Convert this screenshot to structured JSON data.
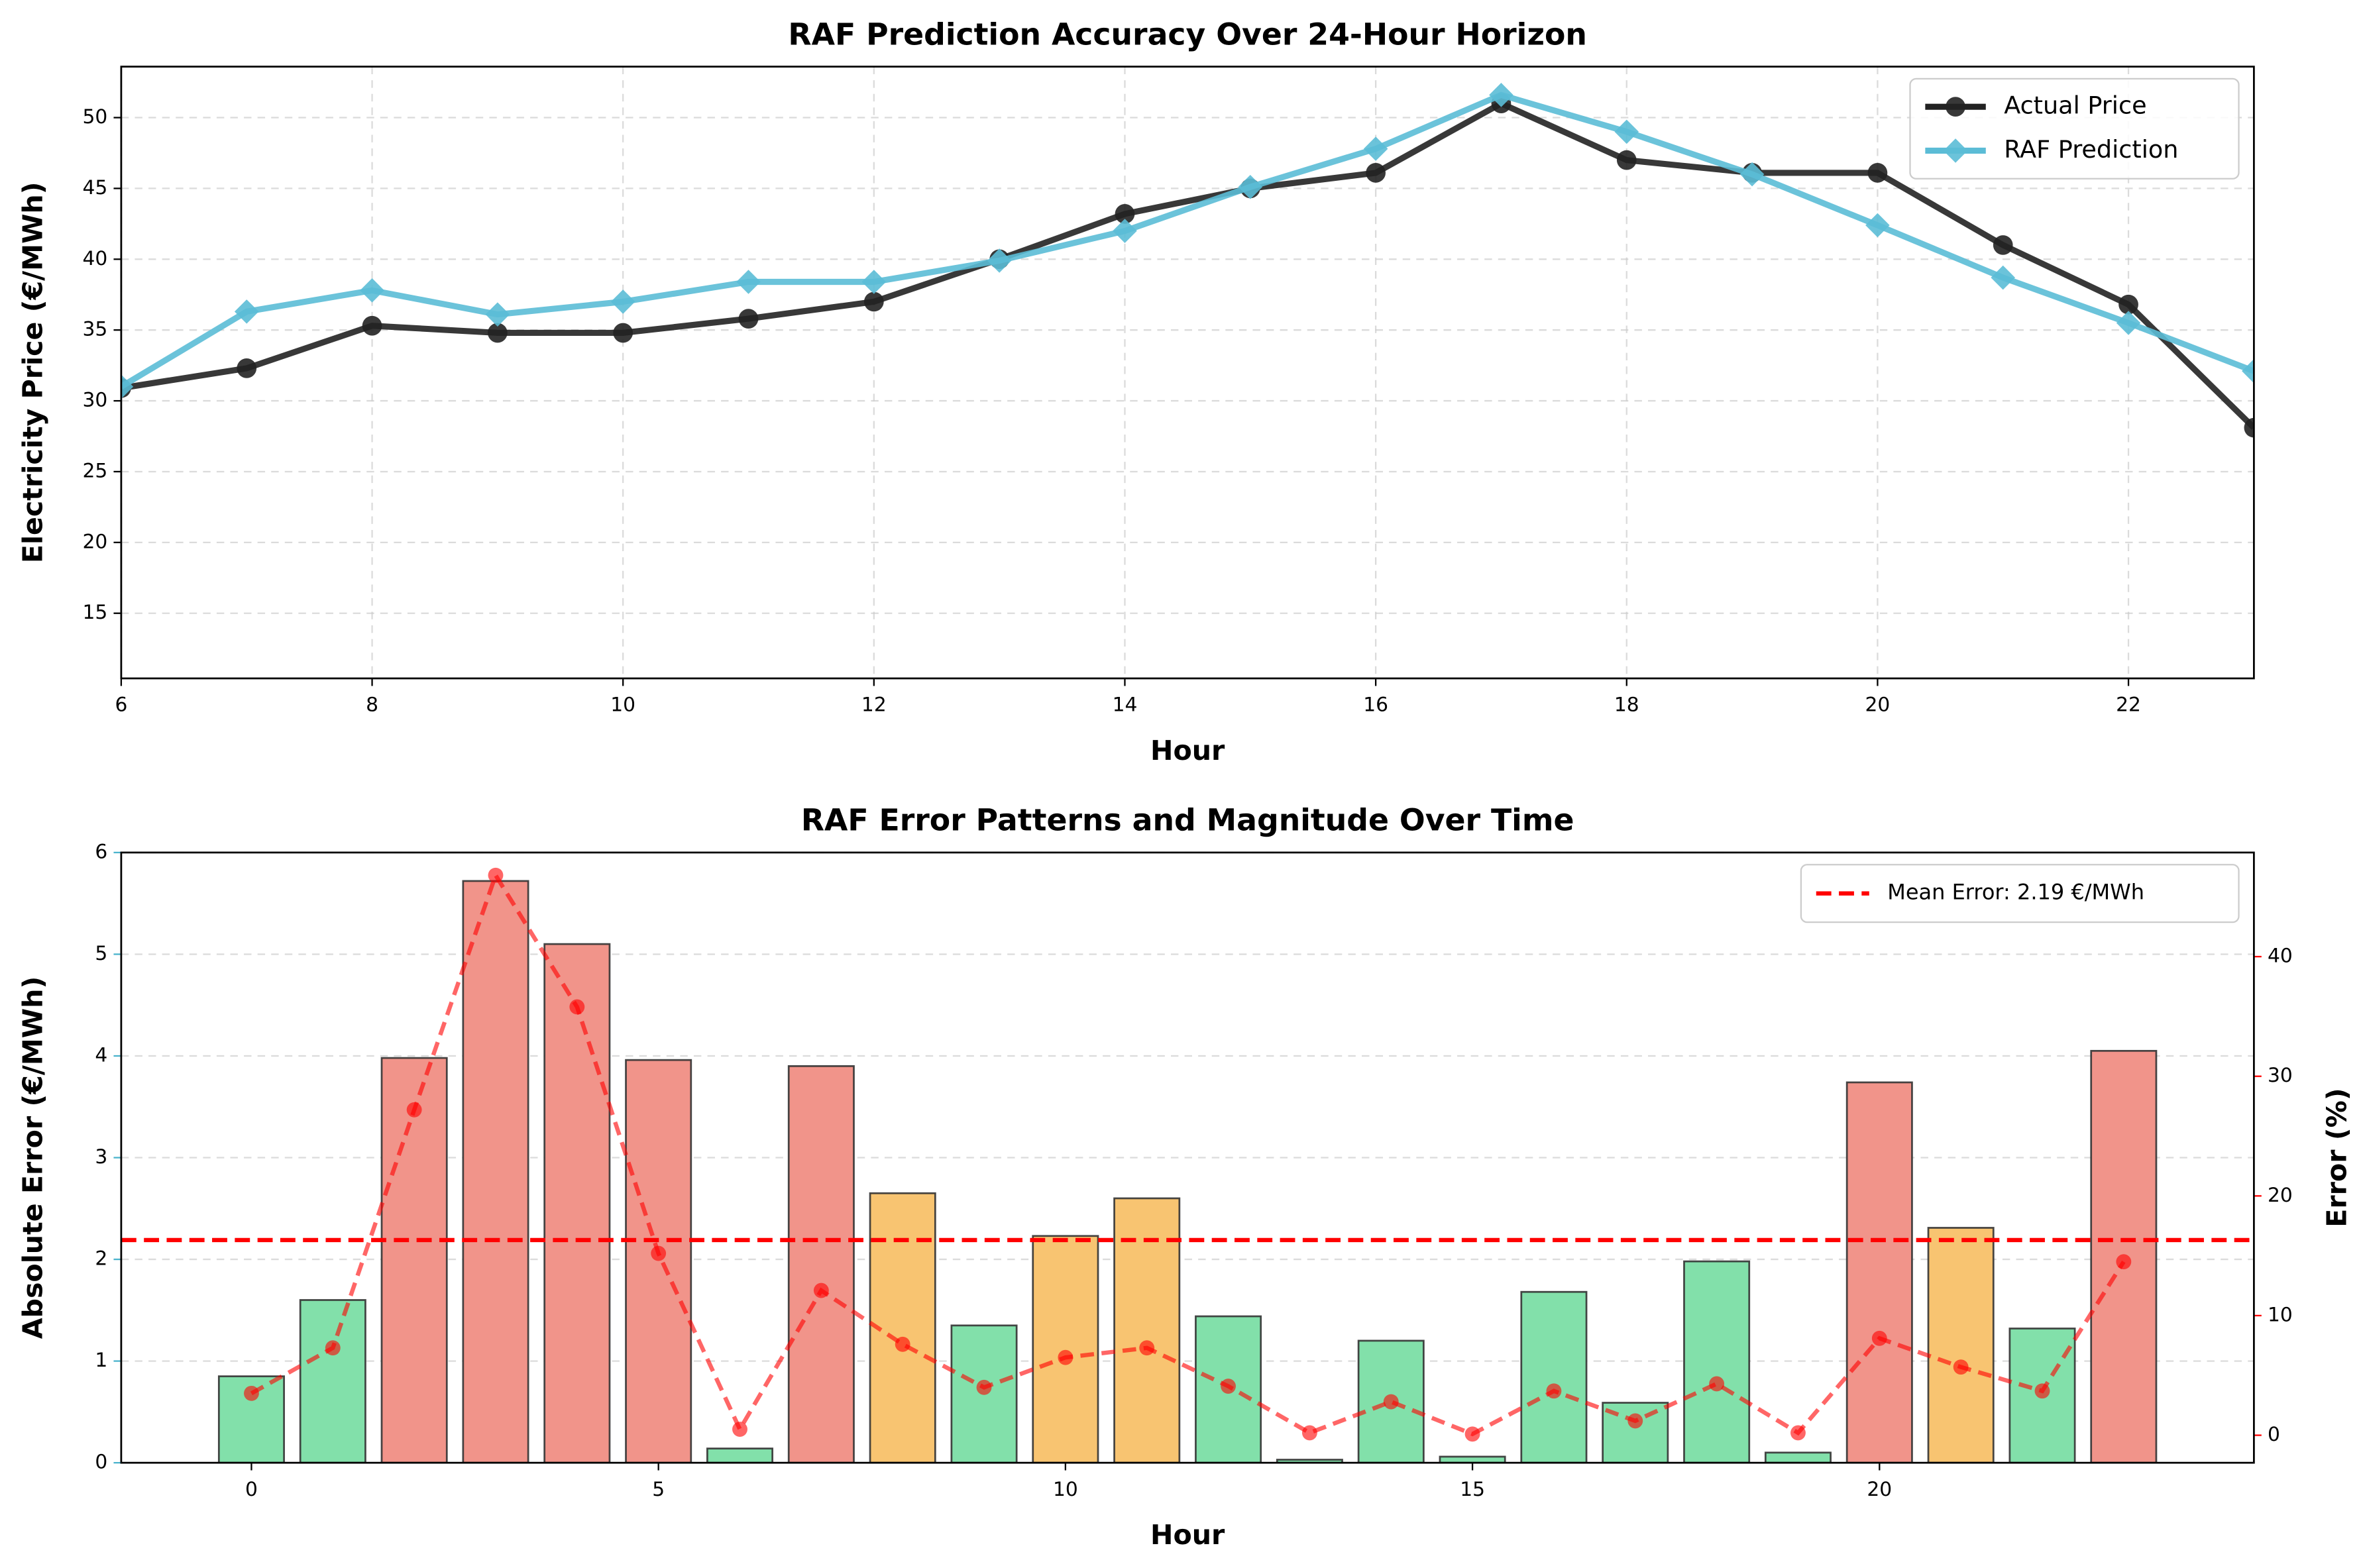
{
  "chart_data": [
    {
      "type": "line",
      "title": "RAF Prediction Accuracy Over 24-Hour Horizon",
      "x_label": "Hour",
      "y_label": "Electricity Price (€/MWh)",
      "x": [
        6,
        7,
        8,
        9,
        10,
        11,
        12,
        13,
        14,
        15,
        16,
        17,
        18,
        19,
        20,
        21,
        22,
        23
      ],
      "series": [
        {
          "name": "Actual Price",
          "color": "#222222",
          "marker": "circle",
          "values": [
            30.9,
            32.3,
            35.3,
            34.8,
            34.8,
            35.8,
            37.0,
            40.0,
            43.2,
            45.0,
            46.1,
            51.0,
            47.0,
            46.1,
            46.1,
            41.0,
            36.8,
            28.1
          ]
        },
        {
          "name": "RAF Prediction",
          "color": "#5bbcd6",
          "marker": "diamond",
          "values": [
            31.0,
            36.3,
            37.8,
            36.1,
            37.0,
            38.4,
            38.4,
            39.9,
            42.0,
            45.1,
            47.8,
            51.6,
            49.0,
            46.0,
            42.4,
            38.7,
            35.5,
            32.1
          ]
        }
      ],
      "xlim": [
        6,
        23
      ],
      "xticks": [
        6,
        8,
        10,
        12,
        14,
        16,
        18,
        20,
        22
      ],
      "ylim": [
        10.4,
        53.6
      ],
      "yticks": [
        15,
        20,
        25,
        30,
        35,
        40,
        45,
        50
      ],
      "grid": "both",
      "legend": "upper right"
    },
    {
      "type": "bar",
      "title": "RAF Error Patterns and Magnitude Over Time",
      "x_label": "Hour",
      "y_label": "Absolute Error (€/MWh)",
      "y2_label": "Error (%)",
      "y_color": "#4ab3cc",
      "y2_color": "#ff0000",
      "x": [
        0,
        1,
        2,
        3,
        4,
        5,
        6,
        7,
        8,
        9,
        10,
        11,
        12,
        13,
        14,
        15,
        16,
        17,
        18,
        19,
        20,
        21,
        22,
        23
      ],
      "values": [
        0.85,
        1.6,
        3.98,
        5.72,
        5.1,
        3.96,
        0.14,
        3.9,
        2.65,
        1.35,
        2.23,
        2.6,
        1.44,
        0.03,
        1.2,
        0.06,
        1.68,
        0.59,
        1.98,
        0.1,
        3.74,
        2.31,
        1.32,
        4.05
      ],
      "colors": [
        "#82e0aa",
        "#82e0aa",
        "#f1948a",
        "#f1948a",
        "#f1948a",
        "#f1948a",
        "#82e0aa",
        "#f1948a",
        "#f8c471",
        "#82e0aa",
        "#f8c471",
        "#f8c471",
        "#82e0aa",
        "#82e0aa",
        "#82e0aa",
        "#82e0aa",
        "#82e0aa",
        "#82e0aa",
        "#82e0aa",
        "#82e0aa",
        "#f1948a",
        "#f8c471",
        "#82e0aa",
        "#f1948a"
      ],
      "series": [
        {
          "axis": "y2",
          "color": "#ff0000",
          "values": [
            3.5,
            7.3,
            27.2,
            46.8,
            35.8,
            15.2,
            0.5,
            12.1,
            7.6,
            4.0,
            6.5,
            7.3,
            4.1,
            0.2,
            2.8,
            0.1,
            3.7,
            1.2,
            4.3,
            0.2,
            8.1,
            5.7,
            3.7,
            14.5
          ]
        }
      ],
      "hlines": [
        {
          "name": "Mean Error: 2.19 €/MWh",
          "value": 2.19,
          "color": "#ff0000"
        }
      ],
      "xlim": [
        -1.6,
        24.6
      ],
      "xticks": [
        0,
        5,
        10,
        15,
        20
      ],
      "ylim": [
        0,
        6
      ],
      "yticks": [
        0,
        1,
        2,
        3,
        4,
        5,
        6
      ],
      "y2lim": [
        -2.3,
        48.7
      ],
      "y2ticks": [
        0,
        10,
        20,
        30,
        40
      ],
      "grid": "y",
      "legend": "upper right"
    }
  ]
}
